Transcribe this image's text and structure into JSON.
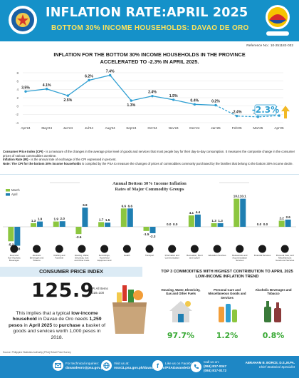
{
  "header": {
    "title": "INFLATION RATE:APRIL 2025",
    "subtitle": "BOTTOM 30% INCOME HOUSEHOLDS: DAVAO DE ORO"
  },
  "ref_no": "Reference No.: 10-251182-032",
  "headline": "INFLATION FOR THE BOTTOM 30% INCOME HOUSEHOLDS IN THE PROVINCE ACCELERATED TO -2.3% IN APRIL 2025.",
  "colors": {
    "header_blue": "#1591c9",
    "subtitle_yellow": "#ffe35a",
    "line": "#2f9fd2",
    "march_bar": "#8cc63f",
    "april_bar": "#1f7fb2",
    "highlight_green": "#39a935",
    "footer_blue": "#1e87c5"
  },
  "chart_data": [
    {
      "type": "line",
      "categories": [
        "Apr'24",
        "May'24",
        "Jun'24",
        "Jul'24",
        "Aug'24",
        "Sep'24",
        "Oct'24",
        "Nov'24",
        "Dec'24",
        "Jan'25",
        "Feb'25",
        "Mar'25",
        "Apr'25"
      ],
      "values": [
        3.5,
        4.1,
        2.5,
        6.2,
        7.4,
        1.3,
        2.4,
        1.5,
        0.4,
        0.2,
        -2.4,
        -2.6,
        -2.3
      ],
      "data_labels": [
        "3.5%",
        "4.1%",
        "2.5%",
        "6.2%",
        "7.4%",
        "1.3%",
        "2.4%",
        "1.5%",
        "0.4%",
        "0.2%",
        "-2.4%",
        "-2.6%",
        "-2.3%"
      ],
      "yticks": [
        "8",
        "6",
        "4",
        "2",
        "0",
        "-2",
        "-4"
      ],
      "ylim": [
        -4,
        8
      ],
      "highlight_label": "-2.3%"
    },
    {
      "type": "bar",
      "title": "Annual Bottom 30% Income Inflation Rates of Major Commodity Groups",
      "legend": [
        "March",
        "April"
      ],
      "categories": [
        "Food and Non-Alcoholic Beverages",
        "Alcoholic Beverages and Tobacco",
        "Clothing and Footwear",
        "Housing, Water, Electricity, Gas and Other Fuels",
        "Furnishings, Household Equipment and Routine Household Maintenance",
        "Health",
        "Transport",
        "Information and Communication",
        "Recreation, Sport and Culture",
        "Education Services",
        "Restaurants and Accommodation Services",
        "Financial Services",
        "Personal Care, and Miscellaneous Goods and Services"
      ],
      "series": [
        {
          "name": "March",
          "values": [
            -5.2,
            1.3,
            1.9,
            -2.6,
            1.7,
            6.6,
            -1.5,
            0.0,
            4.1,
            1.3,
            10.1,
            0.0,
            2.2
          ]
        },
        {
          "name": "April",
          "values": [
            -6.8,
            1.9,
            2.0,
            6.9,
            1.5,
            6.6,
            -2.3,
            0.0,
            4.4,
            1.3,
            10.1,
            0.0,
            2.6
          ]
        }
      ]
    }
  ],
  "definitions": {
    "cpi_term": "Consumer Price Index (CPI)",
    "cpi_text": " - is a measure of the changes in the average price level of goods and services that most people buy for their day-to-day consumption. It measures the composite change in the consumer prices of various commodities overtime.",
    "ir_term": "Inflation Rate (IR)",
    "ir_text": " - is the annual rate of exchange of the CPI expressed in percent.",
    "note_term": "Note: The CPI for the bottom 30% income households",
    "note_text": " is compiled by the PSA to measure the changes of prices of commodities commonly purchased by the families that belong to the bottom 30% income decile."
  },
  "cpi": {
    "section_title": "CONSUMER PRICE INDEX",
    "value": "125.9",
    "note": "CPI All Items 2018=100",
    "text_1": "This implies that a typical ",
    "text_bold_1": "low-income household",
    "text_2": " in Davao de Oro needs ",
    "text_bold_2": "1,259 pesos",
    "text_3": " in ",
    "text_bold_3": "April 2025",
    "text_4": " to ",
    "text_bold_4": "purchase",
    "text_5": " a basket of goods and services worth 1,000 pesos in 2018."
  },
  "top3": {
    "title": "TOP 3 COMMODITIES WITH HIGHEST CONTRIBUTION TO APRIL 2025 LOW-INCOME INFLATION TREND",
    "items": [
      {
        "label": "Housing, Water, Electricity, Gas and Other Fuels",
        "pct": "97.7%"
      },
      {
        "label": "Personal Care and Miscellaneous Goods and Services",
        "pct": "1.2%"
      },
      {
        "label": "Alcoholic Beverages and Tobacco",
        "pct": "0.8%"
      }
    ]
  },
  "source_note": "Source: Philippine Statistics Authority (PSA) Retail Price Survey",
  "footer": {
    "email_label": "For technical inquiries:",
    "email": "davaodeoro@psa.gov.ph",
    "web_label": "Visit us at:",
    "web": "rsso11.psa.gov.ph/davao-de-oro",
    "fb_label": "Like us on Facebook:",
    "fb": "/PSADavaodeOro",
    "call_label": "Call us on:",
    "phone_1": "(084) 817-0347",
    "phone_2": "(084) 817-0172",
    "signatory": "ABRAHAM B. BORCE, D.S.,M.PA.",
    "signatory_title": "Chief Statistical Specialist"
  }
}
